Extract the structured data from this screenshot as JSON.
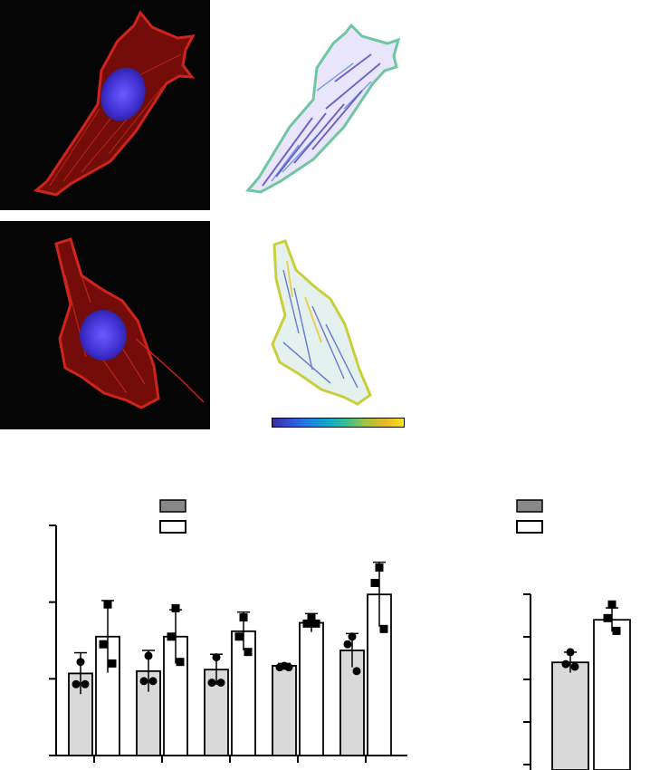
{
  "colors": {
    "background": "#ffffff",
    "image_background": "#050505",
    "actin_red": "#d8261e",
    "nucleus_blue": "#3f2fd0",
    "bar_gray": "#d9d9d9",
    "bar_white": "#ffffff",
    "stroke": "#000000"
  },
  "colorbar": {
    "colormap": "parula",
    "stops": [
      "#3b2a9c",
      "#3253d8",
      "#1c84e0",
      "#12a8c8",
      "#3cbf8e",
      "#a6c23a",
      "#e8b92a",
      "#f8e51a"
    ]
  },
  "images": [
    {
      "kind": "fluorescence",
      "row": 1,
      "channels": [
        "actin-red",
        "nucleus-blue"
      ]
    },
    {
      "kind": "orientation-map",
      "row": 1
    },
    {
      "kind": "fluorescence",
      "row": 2,
      "channels": [
        "actin-red",
        "nucleus-blue"
      ]
    },
    {
      "kind": "orientation-map",
      "row": 2
    }
  ],
  "chart_data": [
    {
      "type": "bar",
      "ylim": [
        0,
        3
      ],
      "yticks": [
        0,
        1,
        2,
        3
      ],
      "grouped": true,
      "legend": {
        "position": "top",
        "markers": [
          "gray-filled",
          "white-filled"
        ]
      },
      "groups": 5,
      "series": [
        {
          "color": "#d9d9d9",
          "marker": "circle",
          "values": [
            1.07,
            1.1,
            1.12,
            1.17,
            1.37
          ],
          "errors": [
            0.27,
            0.27,
            0.2,
            0.03,
            0.22
          ],
          "points": [
            [
              1.22,
              0.93,
              0.93
            ],
            [
              1.3,
              0.97,
              0.97
            ],
            [
              1.28,
              0.95,
              0.95
            ],
            [
              1.17,
              1.15,
              1.15
            ],
            [
              1.55,
              1.45,
              1.1
            ]
          ]
        },
        {
          "color": "#ffffff",
          "marker": "square",
          "values": [
            1.55,
            1.55,
            1.62,
            1.73,
            2.1
          ],
          "errors": [
            0.47,
            0.35,
            0.25,
            0.12,
            0.42
          ],
          "points": [
            [
              1.97,
              1.45,
              1.2
            ],
            [
              1.92,
              1.55,
              1.22
            ],
            [
              1.8,
              1.55,
              1.35
            ],
            [
              1.8,
              1.72,
              1.72
            ],
            [
              2.45,
              2.25,
              1.65
            ]
          ]
        }
      ]
    },
    {
      "type": "bar",
      "ylim": [
        0,
        2
      ],
      "yticks": [
        0,
        0.5,
        1,
        1.5,
        2
      ],
      "legend": {
        "position": "top",
        "markers": [
          "gray-filled",
          "white-filled"
        ]
      },
      "series": [
        {
          "color": "#d9d9d9",
          "marker": "circle",
          "values": [
            1.2
          ],
          "errors": [
            0.12
          ],
          "points": [
            [
              1.32,
              1.18,
              1.15
            ]
          ]
        },
        {
          "color": "#ffffff",
          "marker": "square",
          "values": [
            1.7
          ],
          "errors": [
            0.14
          ],
          "points": [
            [
              1.88,
              1.72,
              1.57
            ]
          ]
        }
      ]
    }
  ]
}
